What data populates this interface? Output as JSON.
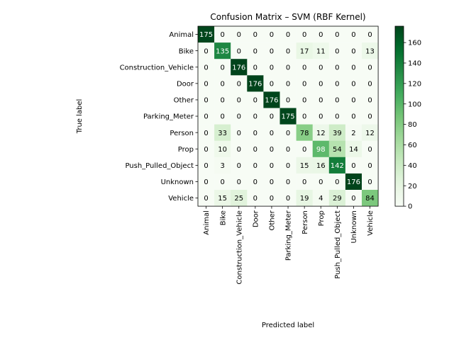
{
  "chart_data": {
    "type": "heatmap",
    "title": "Confusion Matrix – SVM (RBF Kernel)",
    "xlabel": "Predicted label",
    "ylabel": "True label",
    "row_labels": [
      "Animal",
      "Bike",
      "Construction_Vehicle",
      "Door",
      "Other",
      "Parking_Meter",
      "Person",
      "Prop",
      "Push_Pulled_Object",
      "Unknown",
      "Vehicle"
    ],
    "col_labels": [
      "Animal",
      "Bike",
      "Construction_Vehicle",
      "Door",
      "Other",
      "Parking_Meter",
      "Person",
      "Prop",
      "Push_Pulled_Object",
      "Unknown",
      "Vehicle"
    ],
    "matrix": [
      [
        175,
        0,
        0,
        0,
        0,
        0,
        0,
        0,
        0,
        0,
        0
      ],
      [
        0,
        135,
        0,
        0,
        0,
        0,
        17,
        11,
        0,
        0,
        13
      ],
      [
        0,
        0,
        176,
        0,
        0,
        0,
        0,
        0,
        0,
        0,
        0
      ],
      [
        0,
        0,
        0,
        176,
        0,
        0,
        0,
        0,
        0,
        0,
        0
      ],
      [
        0,
        0,
        0,
        0,
        176,
        0,
        0,
        0,
        0,
        0,
        0
      ],
      [
        0,
        0,
        0,
        0,
        0,
        175,
        0,
        0,
        0,
        0,
        0
      ],
      [
        0,
        33,
        0,
        0,
        0,
        0,
        78,
        12,
        39,
        2,
        12
      ],
      [
        0,
        10,
        0,
        0,
        0,
        0,
        0,
        98,
        54,
        14,
        0
      ],
      [
        0,
        3,
        0,
        0,
        0,
        0,
        15,
        16,
        142,
        0,
        0
      ],
      [
        0,
        0,
        0,
        0,
        0,
        0,
        0,
        0,
        0,
        176,
        0
      ],
      [
        0,
        15,
        25,
        0,
        0,
        0,
        19,
        4,
        29,
        0,
        84
      ]
    ],
    "colormap": "Greens",
    "vmin": 0,
    "vmax": 176,
    "colorbar_ticks": [
      0,
      20,
      40,
      60,
      80,
      100,
      120,
      140,
      160
    ],
    "grid": false
  }
}
